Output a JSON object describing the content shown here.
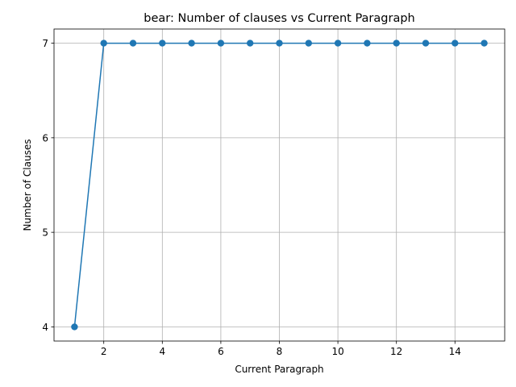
{
  "chart_data": {
    "type": "line",
    "title": "bear: Number of clauses vs Current Paragraph",
    "xlabel": "Current Paragraph",
    "ylabel": "Number of Clauses",
    "x": [
      1,
      2,
      3,
      4,
      5,
      6,
      7,
      8,
      9,
      10,
      11,
      12,
      13,
      14,
      15
    ],
    "series": [
      {
        "values": [
          4,
          7,
          7,
          7,
          7,
          7,
          7,
          7,
          7,
          7,
          7,
          7,
          7,
          7,
          7
        ],
        "color": "#1f77b4",
        "marker": "circle"
      }
    ],
    "xlim": [
      0.3,
      15.7
    ],
    "ylim": [
      3.85,
      7.15
    ],
    "xticks": [
      2,
      4,
      6,
      8,
      10,
      12,
      14
    ],
    "yticks": [
      4,
      5,
      6,
      7
    ],
    "grid": true,
    "grid_color": "#b0b0b0"
  }
}
